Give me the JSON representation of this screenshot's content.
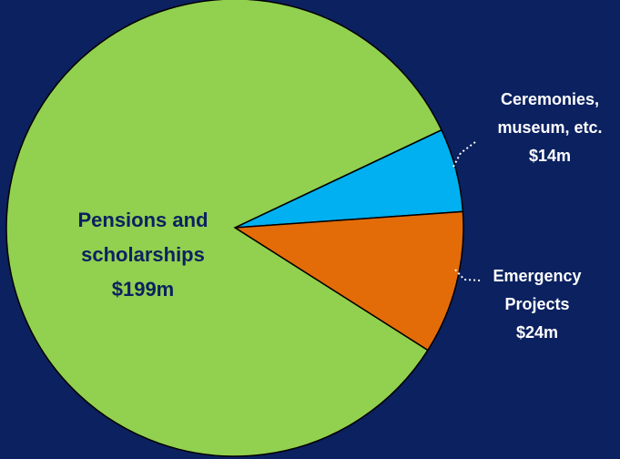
{
  "chart_data": {
    "type": "pie",
    "slices": [
      {
        "name": "Pensions and scholarships",
        "value": 199,
        "value_label": "$199m",
        "color": "#92d050"
      },
      {
        "name": "Ceremonies, museum, etc.",
        "value": 14,
        "value_label": "$14m",
        "color": "#00b0f0"
      },
      {
        "name": "Emergency Projects",
        "value": 24,
        "value_label": "$24m",
        "color": "#e36c09"
      }
    ],
    "labels": {
      "pensions": {
        "line1": "Pensions and",
        "line2": "scholarships",
        "line3": "$199m"
      },
      "ceremonies": {
        "line1": "Ceremonies,",
        "line2": "museum, etc.",
        "line3": "$14m"
      },
      "emergency": {
        "line1": "Emergency",
        "line2": "Projects",
        "line3": "$24m"
      }
    },
    "background": "#0b2160",
    "edge_color": "#000000",
    "leader_line_color": "#ffffff"
  }
}
